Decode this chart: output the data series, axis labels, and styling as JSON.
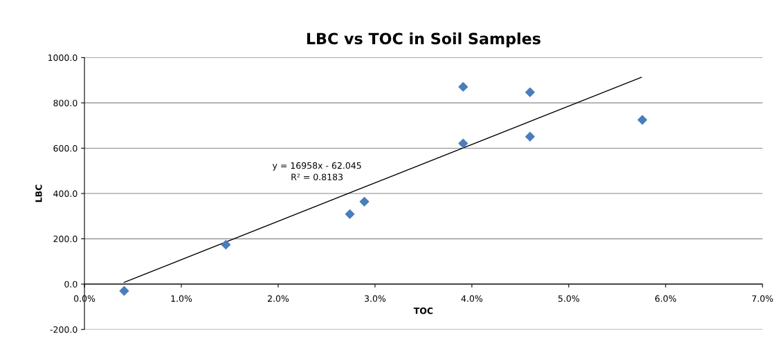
{
  "chart_data": {
    "type": "scatter",
    "title": "LBC vs TOC in Soil Samples",
    "xlabel": "TOC",
    "ylabel": "LBC",
    "series": [
      {
        "color": "#4a7ebb",
        "marker": "diamond",
        "x": [
          0.0041,
          0.0146,
          0.0274,
          0.0289,
          0.0391,
          0.0391,
          0.046,
          0.046,
          0.0576
        ],
        "values": [
          -30,
          174,
          309,
          364,
          871,
          621,
          847,
          651,
          725
        ]
      },
      {
        "type": "line",
        "color": "#000000",
        "marker": "none",
        "line_style": "solid",
        "x": [
          0.0041,
          0.0575
        ],
        "values": [
          8,
          913
        ]
      }
    ],
    "annotations": [
      "y = 16958x - 62.045",
      "R² = 0.8183"
    ],
    "xlim": [
      0,
      0.07
    ],
    "ylim": [
      -200,
      1000
    ],
    "xticks": [
      {
        "value": 0,
        "label": "0.0%"
      },
      {
        "value": 0.01,
        "label": "1.0%"
      },
      {
        "value": 0.02,
        "label": "2.0%"
      },
      {
        "value": 0.03,
        "label": "3.0%"
      },
      {
        "value": 0.04,
        "label": "4.0%"
      },
      {
        "value": 0.05,
        "label": "5.0%"
      },
      {
        "value": 0.06,
        "label": "6.0%"
      },
      {
        "value": 0.07,
        "label": "7.0%"
      }
    ],
    "yticks": [
      {
        "value": -200,
        "label": "-200.0"
      },
      {
        "value": 0,
        "label": "0.0"
      },
      {
        "value": 200,
        "label": "200.0"
      },
      {
        "value": 400,
        "label": "400.0"
      },
      {
        "value": 600,
        "label": "600.0"
      },
      {
        "value": 800,
        "label": "800.0"
      },
      {
        "value": 1000,
        "label": "1000.0"
      }
    ],
    "grid": "y",
    "legend": false
  }
}
